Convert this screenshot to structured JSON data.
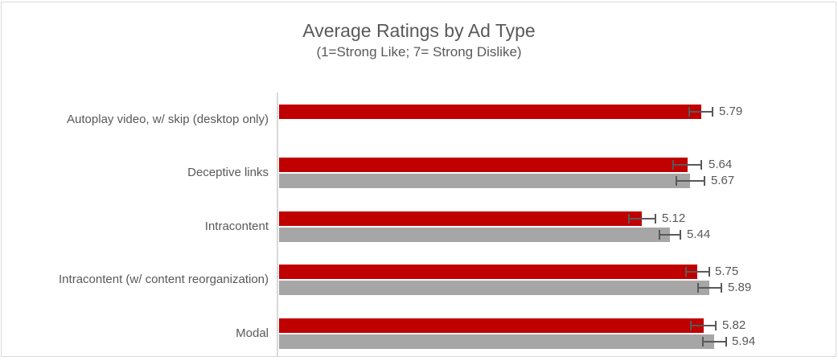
{
  "chart_data": {
    "type": "bar",
    "orientation": "horizontal",
    "title": "Average Ratings by Ad Type",
    "subtitle": "(1=Strong Like; 7= Strong Dislike)",
    "categories": [
      "Autoplay video, w/ skip (desktop only)",
      "Deceptive links",
      "Intracontent",
      "Intracontent (w/ content reorganization)",
      "Modal"
    ],
    "series": [
      {
        "name": "red-series",
        "color": "#C00000",
        "values": [
          5.79,
          5.64,
          5.12,
          5.75,
          5.82
        ],
        "errors": [
          0.14,
          0.17,
          0.16,
          0.14,
          0.15
        ]
      },
      {
        "name": "gray-series",
        "color": "#A6A6A6",
        "values": [
          null,
          5.67,
          5.44,
          5.89,
          5.94
        ],
        "errors": [
          null,
          0.17,
          0.13,
          0.14,
          0.14
        ]
      }
    ],
    "axis": {
      "min": 1,
      "max": 7,
      "gridlines": false,
      "axis_line_visible": true
    },
    "error_bars": true,
    "data_labels": true,
    "legend": "none"
  },
  "colors": {
    "bar_red": "#C00000",
    "bar_gray": "#A6A6A6",
    "error_bar": "#595959",
    "text": "#595959",
    "axis_line": "#D9D9D9",
    "frame_border": "#D9D9D9",
    "background": "#FFFFFF"
  }
}
